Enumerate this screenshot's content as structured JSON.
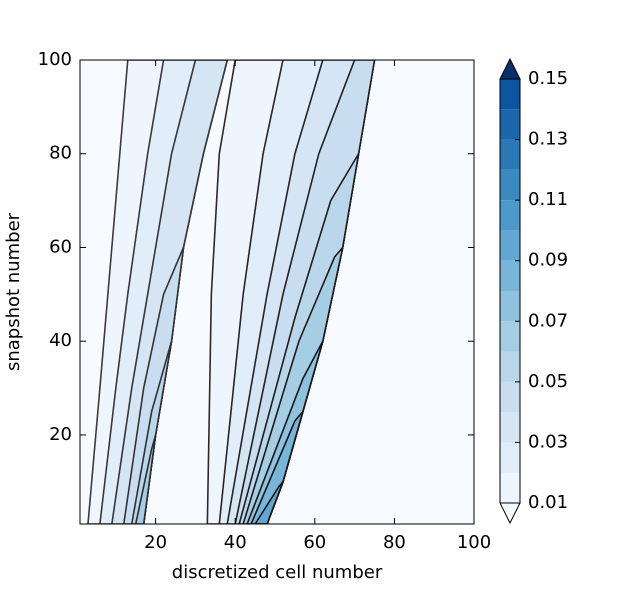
{
  "chart_data": {
    "type": "contourf",
    "xlabel": "discretized cell number",
    "ylabel": "snapshot number",
    "xlim": [
      1,
      100
    ],
    "ylim": [
      1,
      100
    ],
    "xticks": [
      20,
      40,
      60,
      80,
      100
    ],
    "yticks": [
      20,
      40,
      60,
      80,
      100
    ],
    "levels": [
      0.01,
      0.02,
      0.03,
      0.04,
      0.05,
      0.06,
      0.07,
      0.08,
      0.09,
      0.1,
      0.11,
      0.12,
      0.13,
      0.14,
      0.15
    ],
    "colorbar_ticks": [
      0.01,
      0.03,
      0.05,
      0.07,
      0.09,
      0.11,
      0.13,
      0.15
    ],
    "under_color": "#f7fbff",
    "over_color": "#08306b",
    "colors": [
      "#eef5fc",
      "#e1edf8",
      "#d5e5f4",
      "#c9ddf0",
      "#b9d6eb",
      "#a5cde3",
      "#8fc2de",
      "#77b5d9",
      "#61a7d2",
      "#4d99ca",
      "#3a8ac2",
      "#2979b9",
      "#1966ad",
      "#0d55a0"
    ],
    "regions": [
      {
        "level": 0.01,
        "x": [
          3,
          6,
          8,
          11,
          13,
          38,
          32,
          27,
          24,
          20,
          17
        ],
        "y": [
          1,
          30,
          50,
          80,
          100,
          100,
          80,
          60,
          40,
          20,
          1
        ]
      },
      {
        "level": 0.02,
        "x": [
          6,
          10,
          13,
          18,
          22,
          38,
          32,
          27,
          24,
          20,
          17
        ],
        "y": [
          1,
          30,
          50,
          80,
          100,
          100,
          80,
          60,
          40,
          20,
          1
        ]
      },
      {
        "level": 0.03,
        "x": [
          9,
          14,
          18,
          24,
          30,
          38,
          32,
          27,
          24,
          20,
          17
        ],
        "y": [
          1,
          30,
          50,
          80,
          100,
          100,
          80,
          60,
          40,
          20,
          1
        ]
      },
      {
        "level": 0.04,
        "x": [
          12,
          17,
          22,
          27,
          24,
          20,
          17
        ],
        "y": [
          1,
          30,
          50,
          60,
          40,
          20,
          1
        ]
      },
      {
        "level": 0.05,
        "x": [
          14,
          19,
          24,
          20,
          17
        ],
        "y": [
          1,
          25,
          40,
          20,
          1
        ]
      },
      {
        "level": 0.06,
        "x": [
          15,
          19,
          20,
          17
        ],
        "y": [
          1,
          17,
          20,
          1
        ]
      },
      {
        "level": 0.01,
        "x": [
          33,
          34,
          36,
          40,
          75,
          71,
          67,
          62,
          57,
          52,
          48
        ],
        "y": [
          1,
          50,
          80,
          100,
          100,
          80,
          60,
          40,
          25,
          10,
          1
        ]
      },
      {
        "level": 0.02,
        "x": [
          36,
          42,
          47,
          52,
          75,
          71,
          67,
          62,
          57,
          52,
          48
        ],
        "y": [
          1,
          50,
          80,
          100,
          100,
          80,
          60,
          40,
          25,
          10,
          1
        ]
      },
      {
        "level": 0.03,
        "x": [
          38,
          48,
          55,
          62,
          75,
          71,
          67,
          62,
          57,
          52,
          48
        ],
        "y": [
          1,
          50,
          80,
          100,
          100,
          80,
          60,
          40,
          25,
          10,
          1
        ]
      },
      {
        "level": 0.04,
        "x": [
          40,
          52,
          61,
          70,
          75,
          71,
          67,
          62,
          57,
          52,
          48
        ],
        "y": [
          1,
          50,
          80,
          100,
          100,
          80,
          60,
          40,
          25,
          10,
          1
        ]
      },
      {
        "level": 0.05,
        "x": [
          41,
          55,
          64,
          71,
          67,
          62,
          57,
          52,
          48
        ],
        "y": [
          1,
          45,
          70,
          80,
          60,
          40,
          25,
          10,
          1
        ]
      },
      {
        "level": 0.06,
        "x": [
          42,
          56,
          65,
          67,
          62,
          57,
          52,
          48
        ],
        "y": [
          1,
          40,
          58,
          60,
          40,
          25,
          10,
          1
        ]
      },
      {
        "level": 0.07,
        "x": [
          43,
          57,
          62,
          57,
          52,
          48
        ],
        "y": [
          1,
          32,
          40,
          25,
          10,
          1
        ]
      },
      {
        "level": 0.08,
        "x": [
          44,
          55,
          57,
          52,
          48
        ],
        "y": [
          1,
          23,
          25,
          10,
          1
        ]
      },
      {
        "level": 0.09,
        "x": [
          45,
          51,
          52,
          48
        ],
        "y": [
          1,
          9,
          10,
          1
        ]
      },
      {
        "level": 0.1,
        "x": [
          45.5,
          48
        ],
        "y": [
          1,
          1
        ]
      }
    ]
  }
}
